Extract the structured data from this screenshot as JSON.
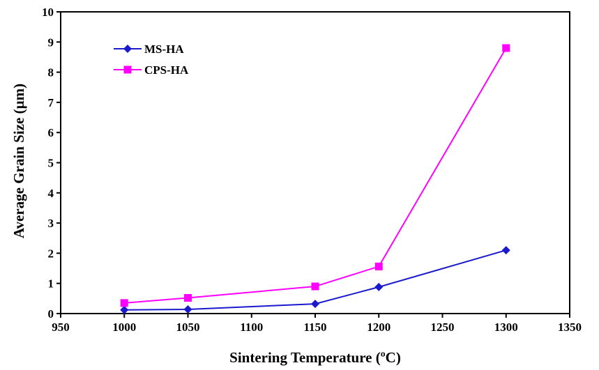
{
  "chart_data": {
    "type": "line",
    "xlabel": "Sintering Temperature (ºC)",
    "ylabel": "Average Grain Size (µm)",
    "xlim": [
      950,
      1350
    ],
    "ylim": [
      0,
      10
    ],
    "xticks": [
      "950",
      "1000",
      "1050",
      "1100",
      "1150",
      "1200",
      "1250",
      "1300",
      "1350"
    ],
    "yticks": [
      "0",
      "1",
      "2",
      "3",
      "4",
      "5",
      "6",
      "7",
      "8",
      "9",
      "10"
    ],
    "grid": false,
    "legend_position": "top-left",
    "series": [
      {
        "name": "MS-HA",
        "color": "#1a1acc",
        "marker": "diamond",
        "x": [
          1000,
          1050,
          1150,
          1200,
          1300
        ],
        "y": [
          0.12,
          0.14,
          0.32,
          0.88,
          2.1
        ]
      },
      {
        "name": "CPS-HA",
        "color": "#ff00ff",
        "marker": "square",
        "x": [
          1000,
          1050,
          1150,
          1200,
          1300
        ],
        "y": [
          0.35,
          0.52,
          0.9,
          1.56,
          8.8
        ]
      }
    ]
  }
}
